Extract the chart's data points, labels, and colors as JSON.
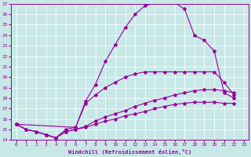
{
  "bg_color": "#c8e8e8",
  "line_color": "#990099",
  "xlabel": "Windchill (Refroidissement éolien,°C)",
  "xlim": [
    -0.5,
    23.5
  ],
  "ylim": [
    14,
    27
  ],
  "xticks": [
    0,
    1,
    2,
    3,
    4,
    5,
    6,
    7,
    8,
    9,
    10,
    11,
    12,
    13,
    14,
    15,
    16,
    17,
    18,
    19,
    20,
    21,
    22,
    23
  ],
  "yticks": [
    14,
    15,
    16,
    17,
    18,
    19,
    20,
    21,
    22,
    23,
    24,
    25,
    26,
    27
  ],
  "curve1_x": [
    0,
    1,
    2,
    3,
    4,
    5,
    6,
    7,
    8,
    9,
    10,
    11,
    12,
    13,
    14,
    15,
    16,
    17,
    18,
    19,
    20,
    21,
    22
  ],
  "curve1_y": [
    15.5,
    15.0,
    14.8,
    14.5,
    14.2,
    15.0,
    15.2,
    17.7,
    19.3,
    21.5,
    23.1,
    24.7,
    26.0,
    26.8,
    27.1,
    27.1,
    27.1,
    26.5,
    24.0,
    23.5,
    22.5,
    18.5,
    18.0
  ],
  "curve2_x": [
    0,
    6,
    7,
    8,
    9,
    10,
    11,
    12,
    13,
    14,
    15,
    16,
    17,
    18,
    19,
    20,
    21,
    22
  ],
  "curve2_y": [
    15.5,
    15.2,
    17.5,
    18.3,
    19.0,
    19.5,
    20.0,
    20.3,
    20.5,
    20.5,
    20.5,
    20.5,
    20.5,
    20.5,
    20.5,
    20.5,
    19.5,
    18.3
  ],
  "curve3_x": [
    0,
    1,
    2,
    3,
    4,
    5,
    6,
    7,
    8,
    9,
    10,
    11,
    12,
    13,
    14,
    15,
    16,
    17,
    18,
    19,
    20,
    21,
    22
  ],
  "curve3_y": [
    15.5,
    15.0,
    14.8,
    14.5,
    14.2,
    14.8,
    15.0,
    15.3,
    15.8,
    16.2,
    16.5,
    16.8,
    17.2,
    17.5,
    17.8,
    18.0,
    18.3,
    18.5,
    18.7,
    18.8,
    18.8,
    18.7,
    18.5
  ],
  "curve4_x": [
    0,
    1,
    2,
    3,
    4,
    5,
    6,
    7,
    8,
    9,
    10,
    11,
    12,
    13,
    14,
    15,
    16,
    17,
    18,
    19,
    20,
    21,
    22
  ],
  "curve4_y": [
    15.5,
    15.0,
    14.8,
    14.5,
    14.2,
    14.8,
    15.0,
    15.2,
    15.5,
    15.8,
    16.0,
    16.3,
    16.5,
    16.7,
    17.0,
    17.2,
    17.4,
    17.5,
    17.6,
    17.6,
    17.6,
    17.5,
    17.5
  ]
}
